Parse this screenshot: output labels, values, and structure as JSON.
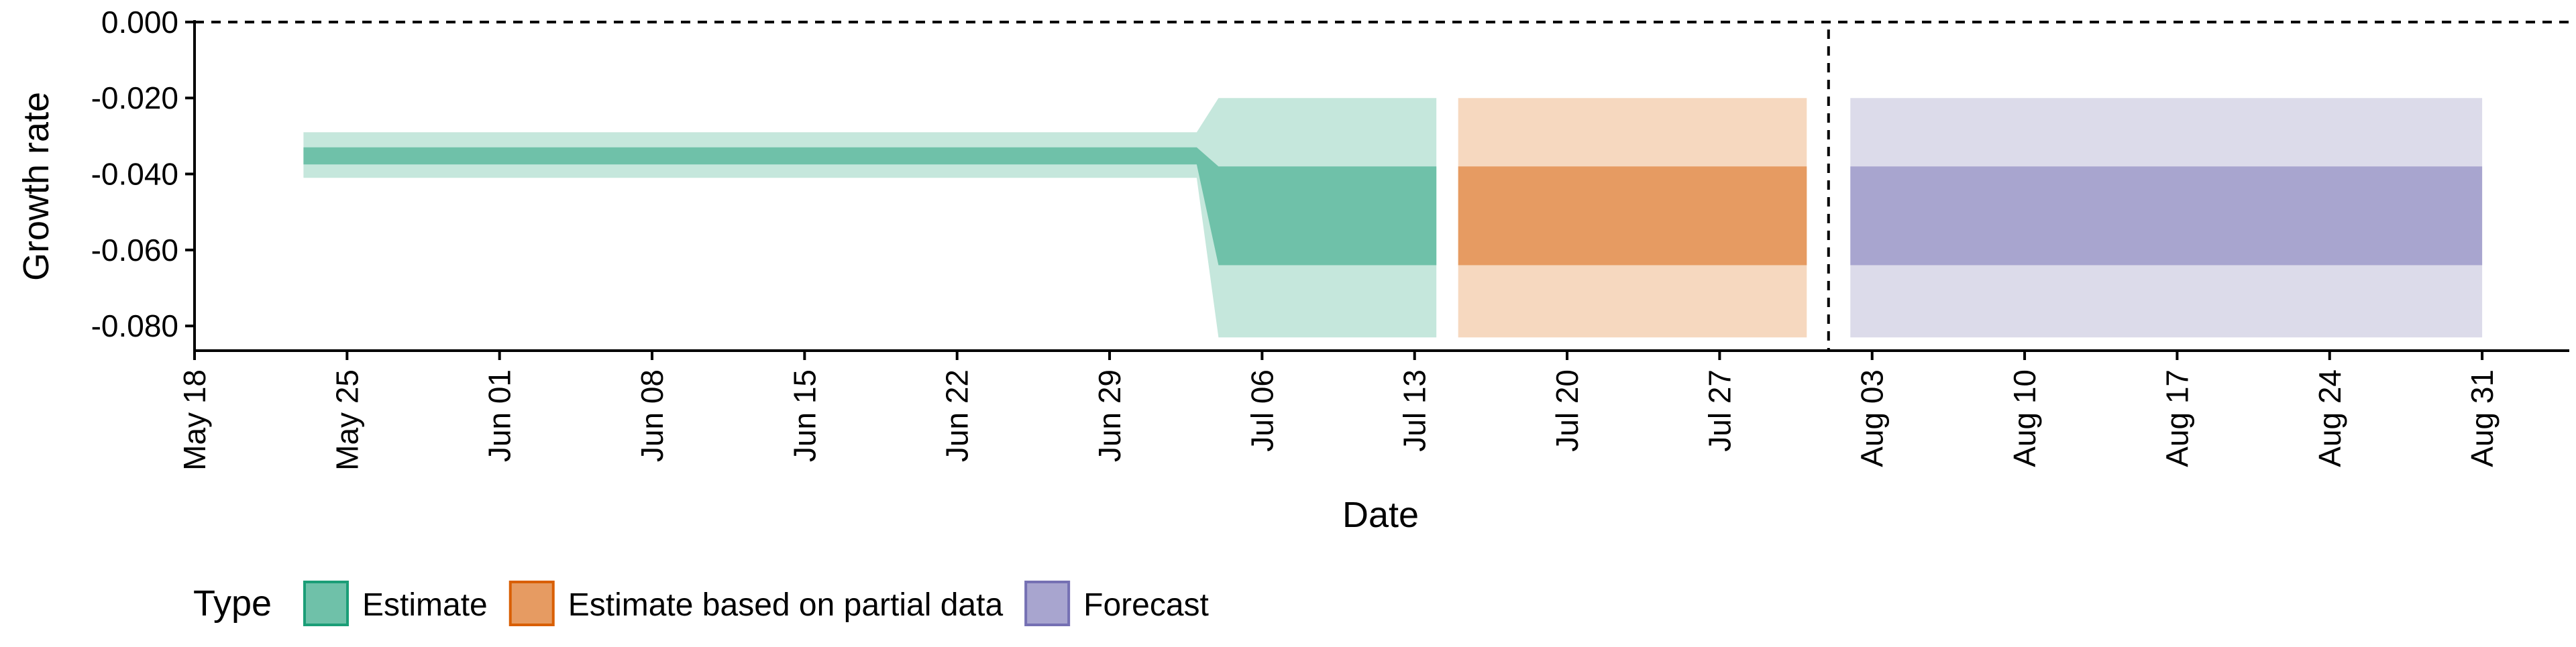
{
  "chart_data": {
    "type": "area",
    "title": "",
    "xlabel": "Date",
    "ylabel": "Growth rate",
    "x_range": [
      "2020-05-18",
      "2020-09-04"
    ],
    "ylim": [
      -0.0865,
      0.0005
    ],
    "x_ticks": [
      "2020-05-18",
      "2020-05-25",
      "2020-06-01",
      "2020-06-08",
      "2020-06-15",
      "2020-06-22",
      "2020-06-29",
      "2020-07-06",
      "2020-07-13",
      "2020-07-20",
      "2020-07-27",
      "2020-08-03",
      "2020-08-10",
      "2020-08-17",
      "2020-08-24",
      "2020-08-31"
    ],
    "x_tick_labels": [
      "May 18",
      "May 25",
      "Jun 01",
      "Jun 08",
      "Jun 15",
      "Jun 22",
      "Jun 29",
      "Jul 06",
      "Jul 13",
      "Jul 20",
      "Jul 27",
      "Aug 03",
      "Aug 10",
      "Aug 17",
      "Aug 24",
      "Aug 31"
    ],
    "y_ticks": [
      0.0,
      -0.02,
      -0.04,
      -0.06,
      -0.08
    ],
    "y_tick_labels": [
      "0.000",
      "-0.020",
      "-0.040",
      "-0.060",
      "-0.080"
    ],
    "reference_lines": {
      "horizontal_y": 0.0,
      "vertical_date": "2020-08-01"
    },
    "grid": false,
    "legend_position": "bottom",
    "legend_title": "Type",
    "colors": {
      "Estimate": {
        "outer": "#c5e7dc",
        "inner": "#6fc1a9",
        "border": "#1b9e77"
      },
      "Estimate based on partial data": {
        "outer": "#f6d8bf",
        "inner": "#e69b62",
        "border": "#d95f02"
      },
      "Forecast": {
        "outer": "#dcdbea",
        "inner": "#a8a5cf",
        "border": "#7570b3"
      }
    },
    "series": [
      {
        "name": "Estimate",
        "points": [
          {
            "x": "2020-05-23",
            "outer_lower": -0.041,
            "outer_upper": -0.029,
            "inner_lower": -0.0375,
            "inner_upper": -0.033
          },
          {
            "x": "2020-07-03",
            "outer_lower": -0.041,
            "outer_upper": -0.029,
            "inner_lower": -0.0375,
            "inner_upper": -0.033
          },
          {
            "x": "2020-07-04",
            "outer_lower": -0.083,
            "outer_upper": -0.02,
            "inner_lower": -0.064,
            "inner_upper": -0.038
          },
          {
            "x": "2020-07-14",
            "outer_lower": -0.083,
            "outer_upper": -0.02,
            "inner_lower": -0.064,
            "inner_upper": -0.038
          }
        ]
      },
      {
        "name": "Estimate based on partial data",
        "points": [
          {
            "x": "2020-07-15",
            "outer_lower": -0.083,
            "outer_upper": -0.02,
            "inner_lower": -0.064,
            "inner_upper": -0.038
          },
          {
            "x": "2020-07-31",
            "outer_lower": -0.083,
            "outer_upper": -0.02,
            "inner_lower": -0.064,
            "inner_upper": -0.038
          }
        ]
      },
      {
        "name": "Forecast",
        "points": [
          {
            "x": "2020-08-02",
            "outer_lower": -0.083,
            "outer_upper": -0.02,
            "inner_lower": -0.064,
            "inner_upper": -0.038
          },
          {
            "x": "2020-08-31",
            "outer_lower": -0.083,
            "outer_upper": -0.02,
            "inner_lower": -0.064,
            "inner_upper": -0.038
          }
        ]
      }
    ]
  }
}
